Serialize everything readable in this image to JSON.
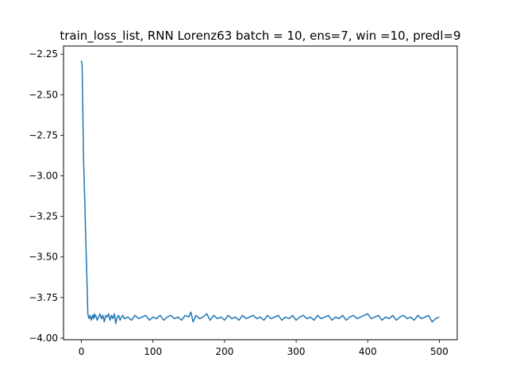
{
  "chart_data": {
    "type": "line",
    "title": "train_loss_list, RNN Lorenz63 batch = 10, ens=7, win =10, predl=9",
    "xlabel": "",
    "ylabel": "",
    "xlim": [
      -25,
      525
    ],
    "ylim": [
      -4.01,
      -2.2
    ],
    "x_ticks": [
      0,
      100,
      200,
      300,
      400,
      500
    ],
    "x_tick_labels": [
      "0",
      "100",
      "200",
      "300",
      "400",
      "500"
    ],
    "y_ticks": [
      -2.25,
      -2.5,
      -2.75,
      -3.0,
      -3.25,
      -3.5,
      -3.75,
      -4.0
    ],
    "y_tick_labels": [
      "−2.25",
      "−2.50",
      "−2.75",
      "−3.00",
      "−3.25",
      "−3.50",
      "−3.75",
      "−4.00"
    ],
    "grid": false,
    "colors": {
      "line": "#1f77b4"
    },
    "series": [
      {
        "x": [
          0,
          1,
          2,
          3,
          4,
          5,
          6,
          7,
          8,
          9,
          10,
          11,
          12,
          13,
          14,
          15,
          16,
          17,
          18,
          19,
          20,
          22,
          24,
          26,
          28,
          30,
          32,
          34,
          36,
          38,
          40,
          42,
          44,
          46,
          48,
          50,
          52,
          54,
          56,
          58,
          60,
          65,
          70,
          75,
          80,
          85,
          90,
          95,
          100,
          105,
          110,
          115,
          120,
          125,
          130,
          135,
          140,
          145,
          150,
          153,
          156,
          160,
          165,
          170,
          175,
          180,
          185,
          190,
          195,
          200,
          205,
          210,
          215,
          220,
          225,
          230,
          235,
          240,
          245,
          250,
          255,
          260,
          265,
          270,
          275,
          280,
          285,
          290,
          295,
          300,
          305,
          310,
          315,
          320,
          325,
          330,
          335,
          340,
          345,
          350,
          355,
          360,
          365,
          370,
          375,
          380,
          385,
          390,
          395,
          400,
          405,
          410,
          415,
          420,
          425,
          430,
          435,
          440,
          445,
          450,
          455,
          460,
          465,
          470,
          475,
          480,
          485,
          490,
          495,
          500
        ],
        "values": [
          -2.29,
          -2.32,
          -2.6,
          -2.9,
          -3.05,
          -3.2,
          -3.38,
          -3.52,
          -3.68,
          -3.85,
          -3.87,
          -3.88,
          -3.86,
          -3.87,
          -3.89,
          -3.87,
          -3.86,
          -3.88,
          -3.85,
          -3.87,
          -3.86,
          -3.89,
          -3.87,
          -3.85,
          -3.88,
          -3.86,
          -3.9,
          -3.86,
          -3.87,
          -3.85,
          -3.89,
          -3.86,
          -3.88,
          -3.85,
          -3.91,
          -3.87,
          -3.86,
          -3.89,
          -3.87,
          -3.86,
          -3.88,
          -3.87,
          -3.89,
          -3.86,
          -3.88,
          -3.87,
          -3.86,
          -3.89,
          -3.87,
          -3.88,
          -3.86,
          -3.89,
          -3.87,
          -3.86,
          -3.88,
          -3.87,
          -3.89,
          -3.86,
          -3.87,
          -3.84,
          -3.9,
          -3.86,
          -3.88,
          -3.87,
          -3.85,
          -3.89,
          -3.86,
          -3.88,
          -3.87,
          -3.89,
          -3.86,
          -3.88,
          -3.87,
          -3.89,
          -3.86,
          -3.88,
          -3.87,
          -3.86,
          -3.88,
          -3.87,
          -3.89,
          -3.86,
          -3.88,
          -3.87,
          -3.86,
          -3.89,
          -3.87,
          -3.88,
          -3.86,
          -3.89,
          -3.87,
          -3.86,
          -3.88,
          -3.87,
          -3.89,
          -3.86,
          -3.88,
          -3.87,
          -3.86,
          -3.89,
          -3.87,
          -3.88,
          -3.86,
          -3.89,
          -3.87,
          -3.86,
          -3.88,
          -3.87,
          -3.86,
          -3.85,
          -3.88,
          -3.87,
          -3.86,
          -3.89,
          -3.87,
          -3.88,
          -3.86,
          -3.89,
          -3.87,
          -3.86,
          -3.88,
          -3.87,
          -3.89,
          -3.86,
          -3.88,
          -3.87,
          -3.86,
          -3.9,
          -3.88,
          -3.87
        ]
      }
    ]
  }
}
